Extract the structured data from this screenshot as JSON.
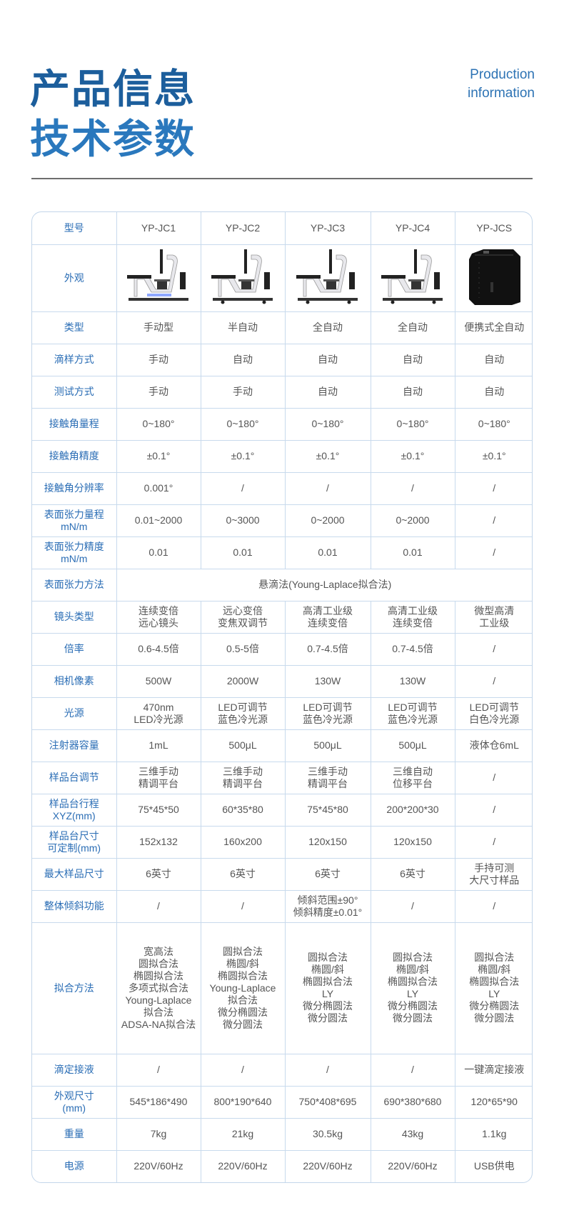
{
  "header": {
    "title_line1": "产品信息",
    "title_line2": "技术参数",
    "en_line1": "Production",
    "en_line2": "information",
    "accent_color": "#1c5e9c"
  },
  "table": {
    "header_label": "型号",
    "models": [
      "YP-JC1",
      "YP-JC2",
      "YP-JC3",
      "YP-JC4",
      "YP-JCS"
    ],
    "appearance_label": "外观",
    "appearance_images": [
      "manual-contact-angle-meter",
      "semi-auto-contact-angle-meter",
      "auto-contact-angle-meter",
      "auto-contact-angle-meter",
      "portable-black-box"
    ],
    "rows": [
      {
        "label": "类型",
        "values": [
          "手动型",
          "半自动",
          "全自动",
          "全自动",
          "便携式全自动"
        ]
      },
      {
        "label": "滴样方式",
        "values": [
          "手动",
          "自动",
          "自动",
          "自动",
          "自动"
        ]
      },
      {
        "label": "测试方式",
        "values": [
          "手动",
          "手动",
          "自动",
          "自动",
          "自动"
        ]
      },
      {
        "label": "接触角量程",
        "values": [
          "0~180°",
          "0~180°",
          "0~180°",
          "0~180°",
          "0~180°"
        ]
      },
      {
        "label": "接触角精度",
        "values": [
          "±0.1°",
          "±0.1°",
          "±0.1°",
          "±0.1°",
          "±0.1°"
        ]
      },
      {
        "label": "接触角分辨率",
        "values": [
          "0.001°",
          "/",
          "/",
          "/",
          "/"
        ]
      },
      {
        "label": "表面张力量程\nmN/m",
        "values": [
          "0.01~2000",
          "0~3000",
          "0~2000",
          "0~2000",
          "/"
        ]
      },
      {
        "label": "表面张力精度\nmN/m",
        "values": [
          "0.01",
          "0.01",
          "0.01",
          "0.01",
          "/"
        ]
      },
      {
        "label": "表面张力方法",
        "span": "悬滴法(Young-Laplace拟合法)"
      },
      {
        "label": "镜头类型",
        "values": [
          "连续变倍\n远心镜头",
          "远心变倍\n变焦双调节",
          "高清工业级\n连续变倍",
          "高清工业级\n连续变倍",
          "微型高清\n工业级"
        ]
      },
      {
        "label": "倍率",
        "values": [
          "0.6-4.5倍",
          "0.5-5倍",
          "0.7-4.5倍",
          "0.7-4.5倍",
          "/"
        ]
      },
      {
        "label": "相机像素",
        "values": [
          "500W",
          "2000W",
          "130W",
          "130W",
          "/"
        ]
      },
      {
        "label": "光源",
        "values": [
          "470nm\nLED冷光源",
          "LED可调节\n蓝色冷光源",
          "LED可调节\n蓝色冷光源",
          "LED可调节\n蓝色冷光源",
          "LED可调节\n白色冷光源"
        ]
      },
      {
        "label": "注射器容量",
        "values": [
          "1mL",
          "500μL",
          "500μL",
          "500μL",
          "液体仓6mL"
        ]
      },
      {
        "label": "样品台调节",
        "values": [
          "三维手动\n精调平台",
          "三维手动\n精调平台",
          "三维手动\n精调平台",
          "三维自动\n位移平台",
          "/"
        ]
      },
      {
        "label": "样品台行程\nXYZ(mm)",
        "values": [
          "75*45*50",
          "60*35*80",
          "75*45*80",
          "200*200*30",
          "/"
        ]
      },
      {
        "label": "样品台尺寸\n可定制(mm)",
        "values": [
          "152x132",
          "160x200",
          "120x150",
          "120x150",
          "/"
        ]
      },
      {
        "label": "最大样品尺寸",
        "values": [
          "6英寸",
          "6英寸",
          "6英寸",
          "6英寸",
          "手持可测\n大尺寸样品"
        ]
      },
      {
        "label": "整体倾斜功能",
        "values": [
          "/",
          "/",
          "倾斜范围±90°\n倾斜精度±0.01°",
          "/",
          "/"
        ]
      },
      {
        "label": "拟合方法",
        "tall": true,
        "values": [
          "宽高法\n圆拟合法\n椭圆拟合法\n多项式拟合法\nYoung-Laplace\n拟合法\nADSA-NA拟合法",
          "圆拟合法\n椭圆/斜\n椭圆拟合法\nYoung-Laplace\n拟合法\n微分椭圆法\n微分圆法",
          "圆拟合法\n椭圆/斜\n椭圆拟合法\nLY\n微分椭圆法\n微分圆法",
          "圆拟合法\n椭圆/斜\n椭圆拟合法\nLY\n微分椭圆法\n微分圆法",
          "圆拟合法\n椭圆/斜\n椭圆拟合法\nLY\n微分椭圆法\n微分圆法"
        ]
      },
      {
        "label": "滴定接液",
        "values": [
          "/",
          "/",
          "/",
          "/",
          "一键滴定接液"
        ]
      },
      {
        "label": "外观尺寸\n(mm)",
        "values": [
          "545*186*490",
          "800*190*640",
          "750*408*695",
          "690*380*680",
          "120*65*90"
        ]
      },
      {
        "label": "重量",
        "values": [
          "7kg",
          "21kg",
          "30.5kg",
          "43kg",
          "1.1kg"
        ]
      },
      {
        "label": "电源",
        "values": [
          "220V/60Hz",
          "220V/60Hz",
          "220V/60Hz",
          "220V/60Hz",
          "USB供电"
        ]
      }
    ]
  }
}
